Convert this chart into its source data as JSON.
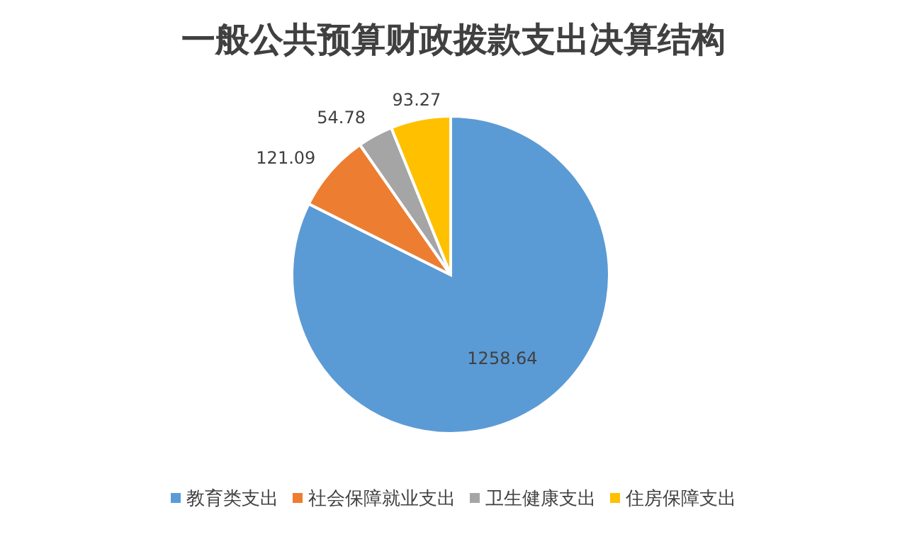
{
  "chart_data": {
    "type": "pie",
    "title": "一般公共预算财政拨款支出决算结构",
    "categories": [
      "教育类支出",
      "社会保障就业支出",
      "卫生健康支出",
      "住房保障支出"
    ],
    "values": [
      1258.64,
      121.09,
      54.78,
      93.27
    ],
    "colors": [
      "#5b9bd5",
      "#ed7d31",
      "#a5a5a5",
      "#ffc000"
    ],
    "data_labels": true,
    "legend": "bottom"
  }
}
